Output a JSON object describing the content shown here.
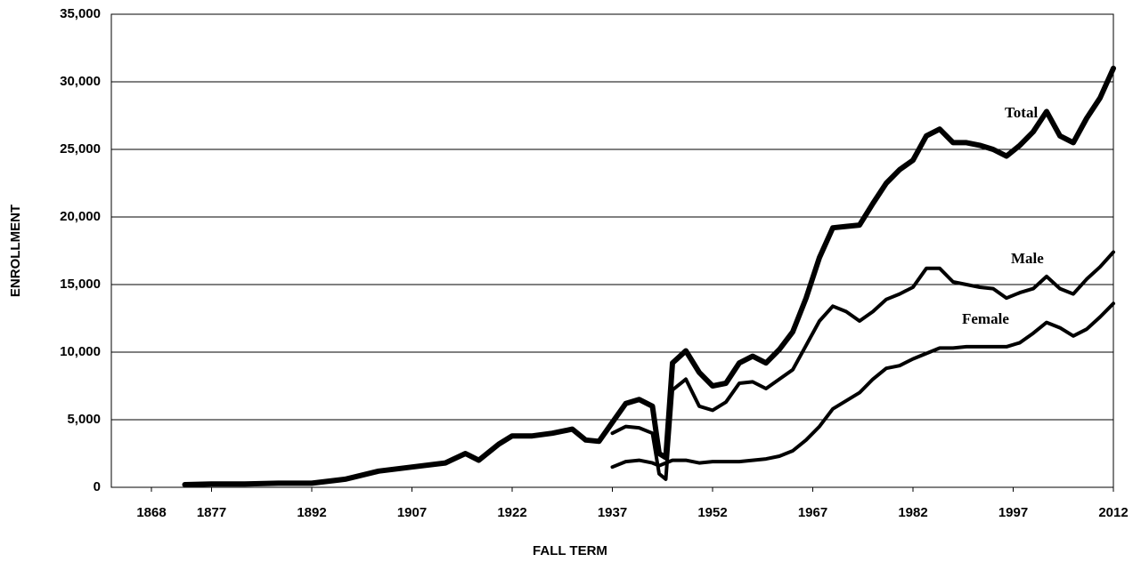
{
  "chart_data": {
    "type": "line",
    "xlabel": "FALL TERM",
    "ylabel": "ENROLLMENT",
    "x": [
      1873,
      1877,
      1882,
      1887,
      1892,
      1897,
      1902,
      1907,
      1912,
      1915,
      1917,
      1920,
      1922,
      1925,
      1928,
      1931,
      1933,
      1935,
      1937,
      1939,
      1941,
      1943,
      1944,
      1945,
      1946,
      1948,
      1950,
      1952,
      1954,
      1956,
      1958,
      1960,
      1962,
      1964,
      1966,
      1968,
      1970,
      1972,
      1974,
      1976,
      1978,
      1980,
      1982,
      1984,
      1986,
      1988,
      1990,
      1992,
      1994,
      1996,
      1998,
      2000,
      2002,
      2004,
      2006,
      2008,
      2010,
      2012
    ],
    "series": [
      {
        "name": "Total",
        "color": "#000000",
        "values": [
          200,
          250,
          250,
          300,
          300,
          600,
          1200,
          1500,
          1800,
          2500,
          2000,
          3200,
          3800,
          3800,
          4000,
          4300,
          3500,
          3400,
          4800,
          6200,
          6500,
          6000,
          2500,
          2200,
          9200,
          10100,
          8500,
          7500,
          7700,
          9200,
          9700,
          9200,
          10200,
          11500,
          14000,
          17000,
          19200,
          19300,
          19400,
          21000,
          22500,
          23500,
          24200,
          26000,
          26500,
          25500,
          25500,
          25300,
          25000,
          24500,
          25300,
          26300,
          27800,
          26000,
          25500,
          27300,
          28800,
          31000
        ]
      },
      {
        "name": "Male",
        "color": "#000000",
        "values": [
          null,
          null,
          null,
          null,
          null,
          null,
          null,
          null,
          null,
          null,
          null,
          null,
          null,
          null,
          null,
          null,
          null,
          null,
          4000,
          4500,
          4400,
          4000,
          1000,
          600,
          7200,
          8000,
          6000,
          5700,
          6300,
          7700,
          7800,
          7300,
          8000,
          8700,
          10500,
          12300,
          13400,
          13000,
          12300,
          13000,
          13900,
          14300,
          14800,
          16200,
          16200,
          15200,
          15000,
          14800,
          14700,
          14000,
          14400,
          14700,
          15600,
          14700,
          14300,
          15400,
          16300,
          17400
        ]
      },
      {
        "name": "Female",
        "color": "#000000",
        "values": [
          null,
          null,
          null,
          null,
          null,
          null,
          null,
          null,
          null,
          null,
          null,
          null,
          null,
          null,
          null,
          null,
          null,
          null,
          1500,
          1900,
          2000,
          1800,
          1600,
          1800,
          2000,
          2000,
          1800,
          1900,
          1900,
          1900,
          2000,
          2100,
          2300,
          2700,
          3500,
          4500,
          5800,
          6400,
          7000,
          8000,
          8800,
          9000,
          9500,
          9900,
          10300,
          10300,
          10400,
          10400,
          10400,
          10400,
          10700,
          11400,
          12200,
          11800,
          11200,
          11700,
          12600,
          13600
        ]
      }
    ],
    "xlim": [
      1862,
      2012
    ],
    "xticks": [
      1868,
      1877,
      1892,
      1907,
      1922,
      1937,
      1952,
      1967,
      1982,
      1997,
      2012
    ],
    "ylim": [
      0,
      35000
    ],
    "yticks": [
      0,
      {
        "value": 5000,
        "label": "5,000"
      },
      {
        "value": 10000,
        "label": "10,000"
      },
      {
        "value": 15000,
        "label": "15,000"
      },
      {
        "value": 20000,
        "label": "20,000"
      },
      {
        "value": 25000,
        "label": "25,000"
      },
      {
        "value": 30000,
        "label": "30,000"
      },
      {
        "value": 35000,
        "label": "35,000"
      }
    ],
    "grid": true
  }
}
